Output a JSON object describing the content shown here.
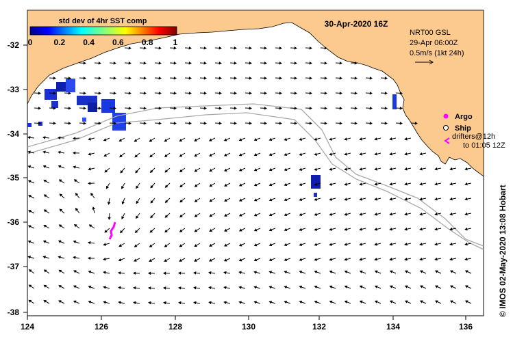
{
  "map": {
    "title": "30-Apr-2020 16Z",
    "lon_range": [
      124,
      136.7
    ],
    "lat_range": [
      -38.1,
      -31.3
    ],
    "x_ticks": [
      "124",
      "126",
      "128",
      "130",
      "132",
      "134",
      "136"
    ],
    "y_ticks": [
      "-32",
      "-33",
      "-34",
      "-35",
      "-36",
      "-37",
      "-38"
    ],
    "land_color": "#fcc98f"
  },
  "colorbar": {
    "title": "std dev of 4hr SST comp",
    "tick_labels": [
      "0",
      "0.2",
      "0.4",
      "0.6",
      "0.8",
      "1"
    ],
    "range": [
      0,
      1
    ]
  },
  "current_legend": {
    "line1": "NRT00 GSL",
    "line2": "29-Apr 06:00Z",
    "line3": "0.5m/s (1kt 24h)"
  },
  "symbol_legend": {
    "argo": "Argo",
    "ship": "Ship",
    "drifters_line1": "drifters@12h",
    "drifters_line2": "to 01:05 12Z",
    "argo_color": "#ff00ff",
    "drifter_color": "#ff00ff"
  },
  "credit": "© IMOS 02-May-2020 13:08 Hobart"
}
